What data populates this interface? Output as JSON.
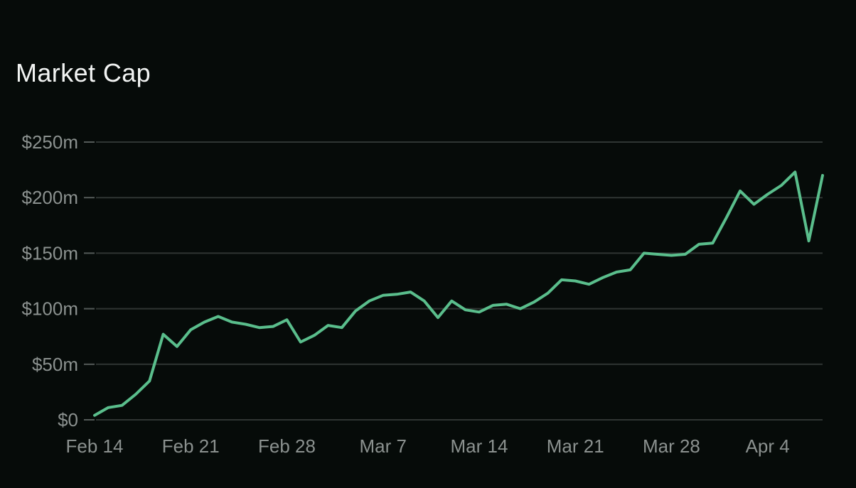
{
  "header": {
    "title": "Market Cap"
  },
  "colors": {
    "background": "#060b09",
    "title_text": "#f2f4f3",
    "axis_label": "#8b918f",
    "gridline": "#2f3533",
    "tick_mark": "#545a58",
    "line": "#5abe8c"
  },
  "chart_data": {
    "type": "line",
    "title": "Market Cap",
    "xlabel": "",
    "ylabel": "",
    "unit": "USD millions",
    "grid": "horizontal-only",
    "legend_position": "none",
    "ylim": [
      0,
      250
    ],
    "yticks": [
      {
        "label": "$0",
        "value": 0
      },
      {
        "label": "$50m",
        "value": 50
      },
      {
        "label": "$100m",
        "value": 100
      },
      {
        "label": "$150m",
        "value": 150
      },
      {
        "label": "$200m",
        "value": 200
      },
      {
        "label": "$250m",
        "value": 250
      }
    ],
    "xticks": [
      {
        "label": "Feb 14",
        "index": 0
      },
      {
        "label": "Feb 21",
        "index": 7
      },
      {
        "label": "Feb 28",
        "index": 14
      },
      {
        "label": "Mar 7",
        "index": 21
      },
      {
        "label": "Mar 14",
        "index": 28
      },
      {
        "label": "Mar 21",
        "index": 35
      },
      {
        "label": "Mar 28",
        "index": 42
      },
      {
        "label": "Apr 4",
        "index": 49
      }
    ],
    "series": [
      {
        "name": "Market Cap",
        "x": [
          "Feb 14",
          "Feb 15",
          "Feb 16",
          "Feb 17",
          "Feb 18",
          "Feb 19",
          "Feb 20",
          "Feb 21",
          "Feb 22",
          "Feb 23",
          "Feb 24",
          "Feb 25",
          "Feb 26",
          "Feb 27",
          "Feb 28",
          "Mar 1",
          "Mar 2",
          "Mar 3",
          "Mar 4",
          "Mar 5",
          "Mar 6",
          "Mar 7",
          "Mar 8",
          "Mar 9",
          "Mar 10",
          "Mar 11",
          "Mar 12",
          "Mar 13",
          "Mar 14",
          "Mar 15",
          "Mar 16",
          "Mar 17",
          "Mar 18",
          "Mar 19",
          "Mar 20",
          "Mar 21",
          "Mar 22",
          "Mar 23",
          "Mar 24",
          "Mar 25",
          "Mar 26",
          "Mar 27",
          "Mar 28",
          "Mar 29",
          "Mar 30",
          "Mar 31",
          "Apr 1",
          "Apr 2",
          "Apr 3",
          "Apr 4",
          "Apr 5",
          "Apr 6",
          "Apr 7",
          "Apr 8"
        ],
        "values": [
          4,
          11,
          13,
          23,
          35,
          77,
          66,
          81,
          88,
          93,
          88,
          86,
          83,
          84,
          90,
          70,
          76,
          85,
          83,
          98,
          107,
          112,
          113,
          115,
          107,
          92,
          107,
          99,
          97,
          103,
          104,
          100,
          106,
          114,
          126,
          125,
          122,
          128,
          133,
          135,
          150,
          149,
          148,
          149,
          158,
          159,
          182,
          206,
          194,
          203,
          211,
          223,
          161,
          220
        ]
      }
    ]
  }
}
